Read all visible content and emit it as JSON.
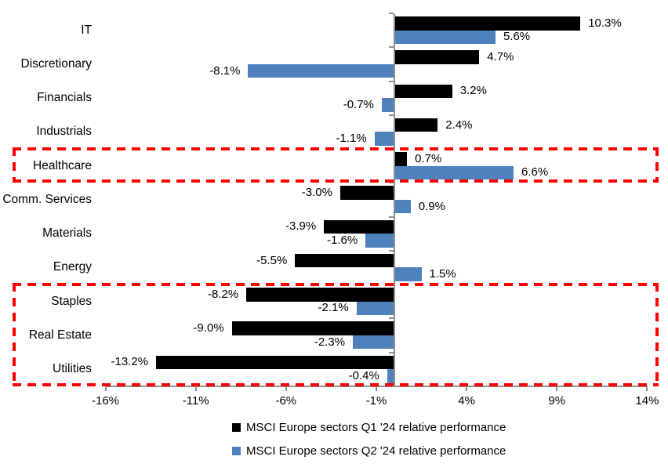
{
  "chart_data": {
    "type": "bar",
    "orientation": "horizontal",
    "title": "",
    "xlabel": "",
    "ylabel": "",
    "grid": false,
    "legend_position": "bottom",
    "categories": [
      "IT",
      "Discretionary",
      "Financials",
      "Industrials",
      "Healthcare",
      "Comm. Services",
      "Materials",
      "Energy",
      "Staples",
      "Real Estate",
      "Utilities"
    ],
    "series": [
      {
        "name": "MSCI Europe sectors Q1 '24 relative performance",
        "color": "#000000",
        "values": [
          10.3,
          4.7,
          3.2,
          2.4,
          0.7,
          -3.0,
          -3.9,
          -5.5,
          -8.2,
          -9.0,
          -13.2
        ],
        "labels": [
          "10.3%",
          "4.7%",
          "3.2%",
          "2.4%",
          "0.7%",
          "-3.0%",
          "-3.9%",
          "-5.5%",
          "-8.2%",
          "-9.0%",
          "-13.2%"
        ]
      },
      {
        "name": "MSCI Europe sectors Q2 '24 relative performance",
        "color": "#4F81BD",
        "values": [
          5.6,
          -8.1,
          -0.7,
          -1.1,
          6.6,
          0.9,
          -1.6,
          1.5,
          -2.1,
          -2.3,
          -0.4
        ],
        "labels": [
          "5.6%",
          "-8.1%",
          "-0.7%",
          "-1.1%",
          "6.6%",
          "0.9%",
          "-1.6%",
          "1.5%",
          "-2.1%",
          "-2.3%",
          "-0.4%"
        ]
      }
    ],
    "x_ticks": [
      -16,
      -11,
      -6,
      -1,
      4,
      9,
      14
    ],
    "x_tick_labels": [
      "-16%",
      "-11%",
      "-6%",
      "-1%",
      "4%",
      "9%",
      "14%"
    ],
    "xlim": [
      -16,
      14
    ],
    "highlights": [
      {
        "name": "healthcare-box",
        "categories": [
          "Healthcare"
        ],
        "color": "#FF0000",
        "style": "dashed"
      },
      {
        "name": "defensives-box",
        "categories": [
          "Staples",
          "Real Estate",
          "Utilities"
        ],
        "color": "#FF0000",
        "style": "dashed"
      }
    ]
  }
}
